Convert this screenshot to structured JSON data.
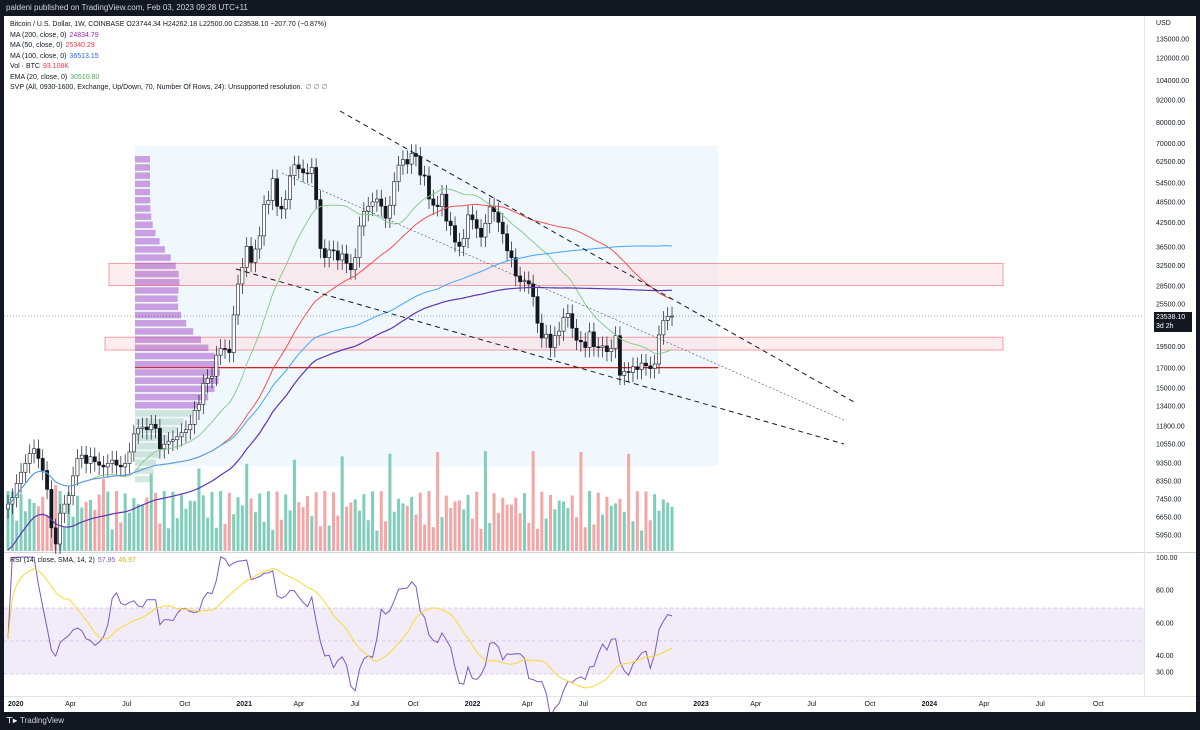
{
  "header": {
    "publish_line": "paldeni published on TradingView.com, Feb 03, 2023 09:28 UTC+11"
  },
  "footer": {
    "brand": "TradingView"
  },
  "legend": {
    "main": "Bitcoin / U.S. Dollar, 1W, COINBASE  O23744.34  H24262.18  L22500.00  C23538.10  −207.70 (−0.87%)",
    "rows": [
      {
        "label": "MA (200, close, 0)",
        "value": "24834.79",
        "color": "#9c27b0"
      },
      {
        "label": "MA (50, close, 0)",
        "value": "25340.29",
        "color": "#f23645"
      },
      {
        "label": "MA (100, close, 0)",
        "value": "36513.15",
        "color": "#2962ff"
      },
      {
        "label": "Vol · BTC",
        "value": "93.108K",
        "color": "#f23645"
      },
      {
        "label": "EMA (20, close, 0)",
        "value": "30510.80",
        "color": "#4caf50"
      },
      {
        "label": "SVP (All, 0930-1600, Exchange, Up/Down, 70, Number Of Rows, 24): Unsupported resolution.",
        "value": "∅ ∅ ∅",
        "color": "#787b86"
      }
    ],
    "rsi": {
      "label": "RSI (14, close, SMA, 14, 2)",
      "value": "57.95",
      "value2": "46.97",
      "color": "#7e57c2",
      "color2": "#d4c23a"
    }
  },
  "price_axis": {
    "unit": "USD",
    "labels": [
      "135000.00",
      "120000.00",
      "104000.00",
      "92000.00",
      "80000.00",
      "70000.00",
      "62500.00",
      "54500.00",
      "48500.00",
      "42500.00",
      "36500.00",
      "32500.00",
      "28500.00",
      "25500.00",
      "19500.00",
      "17000.00",
      "15000.00",
      "13400.00",
      "11800.00",
      "10550.00",
      "9350.00",
      "8350.00",
      "7450.00",
      "6650.00",
      "5950.00"
    ],
    "current_price": "23538.10",
    "countdown": "3d 2h"
  },
  "rsi_axis": {
    "labels": [
      "100.00",
      "80.00",
      "60.00",
      "40.00",
      "30.00"
    ]
  },
  "time_axis": {
    "labels": [
      "2020",
      "Apr",
      "Jul",
      "Oct",
      "2021",
      "Apr",
      "Jul",
      "Oct",
      "2022",
      "Apr",
      "Jul",
      "Oct",
      "2023",
      "Apr",
      "Jul",
      "Oct",
      "2024",
      "Apr",
      "Jul",
      "Oct"
    ]
  },
  "chart_data": {
    "type": "candlestick",
    "symbol": "Bitcoin / U.S. Dollar",
    "interval": "1W",
    "exchange": "COINBASE",
    "scale": "log",
    "ohlc_last": {
      "open": 23744.34,
      "high": 24262.18,
      "low": 22500.0,
      "close": 23538.1,
      "change": -207.7,
      "change_pct": -0.87
    },
    "date_range": [
      "2019-12",
      "2023-02"
    ],
    "weekly_closes": [
      7200,
      7500,
      8200,
      8800,
      9300,
      9900,
      10200,
      9600,
      8900,
      7900,
      6200,
      5600,
      6800,
      7200,
      7600,
      8600,
      9600,
      9800,
      9300,
      9700,
      9400,
      9200,
      9100,
      9300,
      9500,
      9200,
      9100,
      9300,
      10000,
      11200,
      11600,
      11700,
      11500,
      11900,
      11600,
      10200,
      10500,
      10700,
      10800,
      11000,
      11300,
      11500,
      11900,
      13000,
      13500,
      15400,
      15900,
      16100,
      18400,
      19200,
      19100,
      18700,
      23700,
      28800,
      32000,
      36500,
      33000,
      35900,
      39000,
      47500,
      48800,
      55900,
      47000,
      46200,
      49000,
      57000,
      61000,
      59500,
      58000,
      57800,
      60000,
      49000,
      36000,
      34000,
      35700,
      35500,
      33500,
      34800,
      32800,
      31500,
      34000,
      41500,
      45500,
      47000,
      48300,
      49200,
      47000,
      43600,
      47300,
      54900,
      60900,
      63100,
      61300,
      65500,
      64300,
      57200,
      56900,
      49200,
      47300,
      46900,
      50700,
      42800,
      41600,
      37500,
      36500,
      38400,
      44500,
      43200,
      40900,
      38700,
      42200,
      46800,
      45400,
      42500,
      39500,
      35500,
      34000,
      30300,
      29200,
      29400,
      28800,
      26600,
      22500,
      20500,
      21000,
      19300,
      20800,
      21400,
      23300,
      23900,
      21800,
      20200,
      20000,
      19300,
      21300,
      19400,
      19300,
      19500,
      18800,
      19200,
      20800,
      16200,
      16600,
      16500,
      17100,
      16800,
      17500,
      17200,
      16900,
      17400,
      20900,
      22900,
      23500,
      23538
    ],
    "volume_k": {
      "last": 93.108
    },
    "indicators": [
      {
        "name": "MA (200, close, 0)",
        "last": 24834.79
      },
      {
        "name": "MA (50, close, 0)",
        "last": 25340.29
      },
      {
        "name": "MA (100, close, 0)",
        "last": 36513.15
      },
      {
        "name": "EMA (20, close, 0)",
        "last": 30510.8
      },
      {
        "name": "RSI (14, close, SMA, 14, 2)",
        "last": 57.95,
        "signal": 46.97,
        "upper_band": 70,
        "lower_band": 30,
        "mid": 50
      }
    ],
    "resistance_zones": [
      [
        28500,
        32800
      ],
      [
        19000,
        20600
      ]
    ],
    "horizontal_line": 17000,
    "trendlines": [
      {
        "from": [
          "2021-11",
          69000
        ],
        "to": [
          "2023-10",
          15500
        ]
      },
      {
        "from": [
          "2021-03",
          45000
        ],
        "to": [
          "2023-10",
          11600
        ]
      }
    ]
  }
}
